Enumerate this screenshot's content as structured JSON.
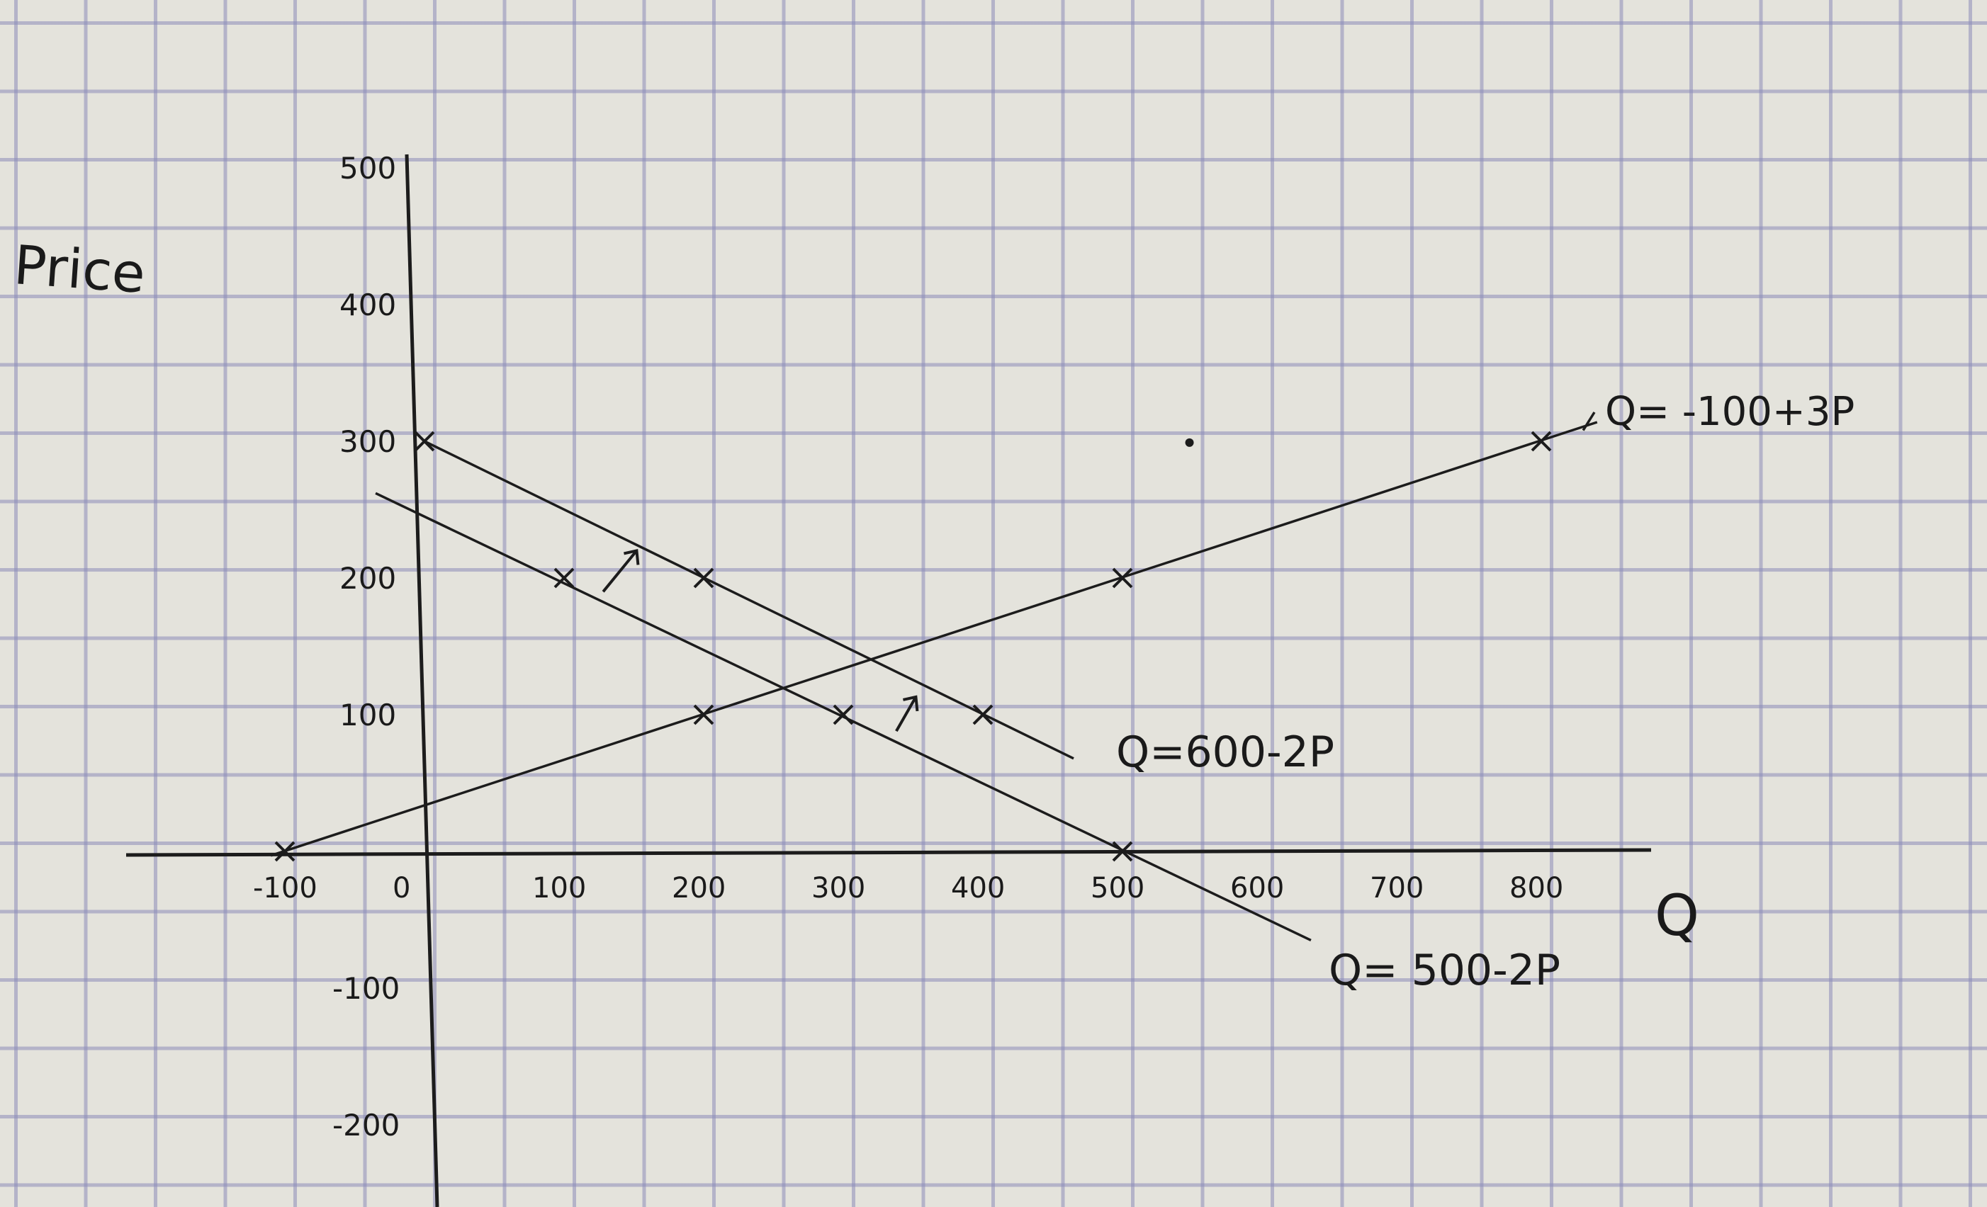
{
  "chart_data": {
    "type": "line",
    "title": "",
    "xlabel": "Q",
    "ylabel": "Price",
    "xlim": [
      -200,
      900
    ],
    "ylim": [
      -250,
      510
    ],
    "grid": true,
    "x_ticks": [
      {
        "value": -100,
        "label": "-100"
      },
      {
        "value": 0,
        "label": "0"
      },
      {
        "value": 100,
        "label": "100"
      },
      {
        "value": 200,
        "label": "200"
      },
      {
        "value": 300,
        "label": "300"
      },
      {
        "value": 400,
        "label": "400"
      },
      {
        "value": 500,
        "label": "500"
      },
      {
        "value": 600,
        "label": "600"
      },
      {
        "value": 700,
        "label": "700"
      },
      {
        "value": 800,
        "label": "800"
      }
    ],
    "y_ticks": [
      {
        "value": 500,
        "label": "500"
      },
      {
        "value": 400,
        "label": "400"
      },
      {
        "value": 300,
        "label": "300"
      },
      {
        "value": 200,
        "label": "200"
      },
      {
        "value": 100,
        "label": "100"
      },
      {
        "value": -100,
        "label": "-100"
      },
      {
        "value": -200,
        "label": "-200"
      }
    ],
    "series": [
      {
        "name": "Q= -100+3P",
        "line": [
          [
            -110,
            -3
          ],
          [
            840,
            314
          ]
        ],
        "points": [
          [
            -100,
            0
          ],
          [
            200,
            100
          ],
          [
            500,
            200
          ],
          [
            800,
            300
          ]
        ]
      },
      {
        "name": "Q=600-2P",
        "line": [
          [
            0,
            300
          ],
          [
            465,
            68
          ]
        ],
        "points": [
          [
            0,
            300
          ],
          [
            200,
            200
          ],
          [
            400,
            100
          ]
        ]
      },
      {
        "name": "Q= 500-2P",
        "line": [
          [
            -35,
            262
          ],
          [
            635,
            -65
          ]
        ],
        "points": [
          [
            100,
            200
          ],
          [
            300,
            100
          ],
          [
            500,
            0
          ]
        ]
      }
    ],
    "annotations": {
      "shift_arrows": [
        [
          [
            128,
            190
          ],
          [
            152,
            220
          ]
        ],
        [
          [
            338,
            88
          ],
          [
            352,
            113
          ]
        ]
      ],
      "stray_dot": [
        548,
        299
      ]
    }
  }
}
